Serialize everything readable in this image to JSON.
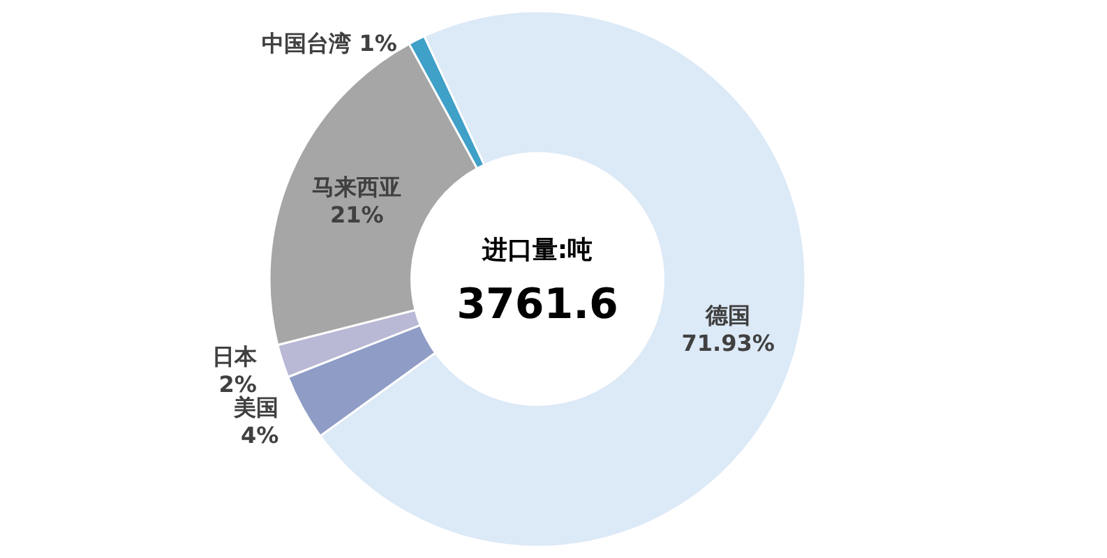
{
  "chart_data": {
    "type": "donut",
    "title": "进口量:吨",
    "annotations": [
      "3761.6"
    ],
    "categories": [
      "德国",
      "美国",
      "日本",
      "马来西亚",
      "中国台湾"
    ],
    "values": [
      71.93,
      4,
      2,
      21,
      1
    ],
    "value_labels": [
      "71.93%",
      "4%",
      "2%",
      "21%",
      "1%"
    ],
    "colors": [
      "#dce9f7",
      "#8e9cc6",
      "#b9b9d6",
      "#a6a6a6",
      "#3fa0c8"
    ]
  }
}
